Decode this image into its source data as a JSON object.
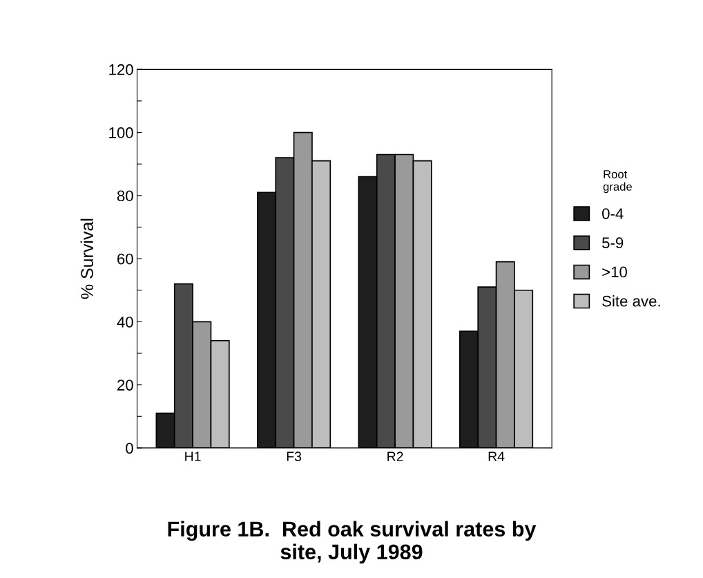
{
  "chart_data": {
    "type": "bar",
    "title": "Figure 1B.  Red oak survival rates by\nsite, July 1989",
    "ylabel": "% Survival",
    "legend_title": "Root\ngrade",
    "categories": [
      "H1",
      "F3",
      "R2",
      "R4"
    ],
    "series": [
      {
        "name": "0-4",
        "color": "#1e1e1e",
        "values": [
          11,
          81,
          86,
          37
        ]
      },
      {
        "name": "5-9",
        "color": "#4a4a4a",
        "values": [
          52,
          92,
          93,
          51
        ]
      },
      {
        "name": ">10",
        "color": "#9a9a9a",
        "values": [
          40,
          100,
          93,
          59
        ]
      },
      {
        "name": "Site ave.",
        "color": "#bdbdbd",
        "values": [
          34,
          91,
          91,
          50
        ]
      }
    ],
    "ylim": [
      0,
      120
    ],
    "yticks": [
      0,
      {
        "value": 10,
        "label": null
      },
      20,
      {
        "value": 30,
        "label": null
      },
      40,
      {
        "value": 50,
        "label": null
      },
      60,
      {
        "value": 70,
        "label": null
      },
      80,
      {
        "value": 90,
        "label": null
      },
      100,
      {
        "value": 110,
        "label": null
      },
      120
    ],
    "legend": "right",
    "grid": false
  }
}
